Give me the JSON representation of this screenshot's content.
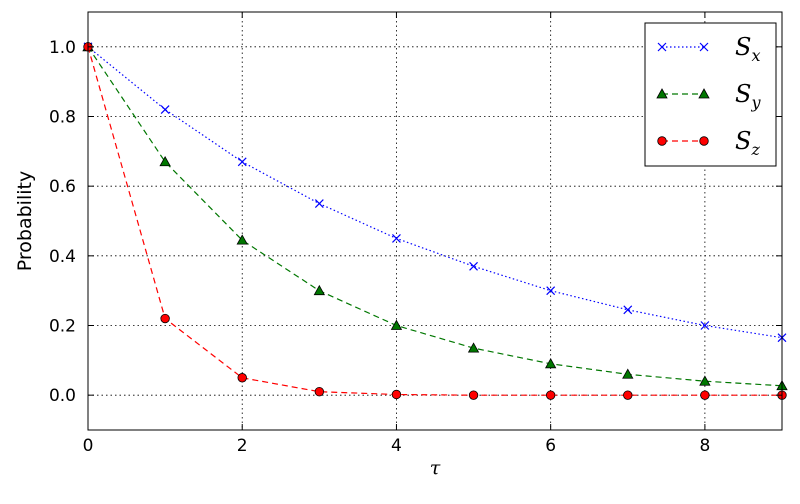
{
  "chart_data": {
    "type": "line",
    "title": "",
    "xlabel": "τ",
    "ylabel": "Probability",
    "xlim": [
      0,
      9
    ],
    "ylim": [
      -0.1,
      1.1
    ],
    "x_ticks": [
      "0",
      "2",
      "4",
      "6",
      "8"
    ],
    "y_ticks": [
      "0.0",
      "0.2",
      "0.4",
      "0.6",
      "0.8",
      "1.0"
    ],
    "grid": true,
    "legend_position": "top-right",
    "x": [
      0,
      1,
      2,
      3,
      4,
      5,
      6,
      7,
      8,
      9
    ],
    "series": [
      {
        "name": "S",
        "subscript": "x",
        "color": "#0000ff",
        "marker": "x",
        "line_style": "dotted",
        "values": [
          1.0,
          0.82,
          0.67,
          0.55,
          0.45,
          0.37,
          0.3,
          0.245,
          0.2,
          0.165
        ]
      },
      {
        "name": "S",
        "subscript": "y",
        "color": "#007700",
        "marker": "triangle",
        "line_style": "dashed",
        "values": [
          1.0,
          0.67,
          0.445,
          0.3,
          0.2,
          0.135,
          0.09,
          0.06,
          0.04,
          0.027
        ]
      },
      {
        "name": "S",
        "subscript": "z",
        "color": "#ff0000",
        "marker": "circle",
        "line_style": "dashed",
        "values": [
          1.0,
          0.22,
          0.05,
          0.01,
          0.002,
          0.0,
          0.0,
          0.0,
          0.0,
          0.0
        ]
      }
    ]
  }
}
